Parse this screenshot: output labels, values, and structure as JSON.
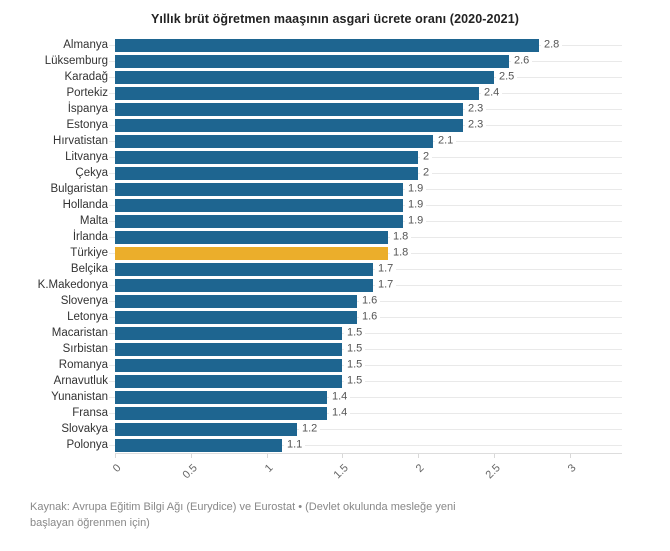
{
  "title": "Yıllık brüt öğretmen maaşının asgari ücrete oranı (2020-2021)",
  "source_note": "Kaynak: Avrupa Eğitim Bilgi Ağı (Eurydice) ve Eurostat • (Devlet okulunda mesleğe yeni başlayan öğrenmen için)",
  "colors": {
    "bar": "#1e6590",
    "highlight": "#ebae2b",
    "row_line": "#e9e9e9",
    "axis_line": "#dddddd"
  },
  "chart_data": {
    "type": "bar",
    "orientation": "horizontal",
    "title": "Yıllık brüt öğretmen maaşının asgari ücrete oranı (2020-2021)",
    "categories": [
      "Almanya",
      "Lüksemburg",
      "Karadağ",
      "Portekiz",
      "İspanya",
      "Estonya",
      "Hırvatistan",
      "Litvanya",
      "Çekya",
      "Bulgaristan",
      "Hollanda",
      "Malta",
      "İrlanda",
      "Türkiye",
      "Belçika",
      "K.Makedonya",
      "Slovenya",
      "Letonya",
      "Macaristan",
      "Sırbistan",
      "Romanya",
      "Arnavutluk",
      "Yunanistan",
      "Fransa",
      "Slovakya",
      "Polonya"
    ],
    "values": [
      2.8,
      2.6,
      2.5,
      2.4,
      2.3,
      2.3,
      2.1,
      2,
      2,
      1.9,
      1.9,
      1.9,
      1.8,
      1.8,
      1.7,
      1.7,
      1.6,
      1.6,
      1.5,
      1.5,
      1.5,
      1.5,
      1.4,
      1.4,
      1.2,
      1.1
    ],
    "highlight_category": "Türkiye",
    "highlight_value": 1.8,
    "value_labels": true,
    "xlabel": "",
    "ylabel": "",
    "xlim": [
      0,
      3.35
    ],
    "x_ticks": [
      0,
      0.5,
      1,
      1.5,
      2,
      2.5,
      3
    ],
    "x_tick_labels": [
      "0",
      "0.5",
      "1",
      "1.5",
      "2",
      "2.5",
      "3"
    ],
    "grid": "horizontal-row-lines",
    "legend": "none"
  }
}
